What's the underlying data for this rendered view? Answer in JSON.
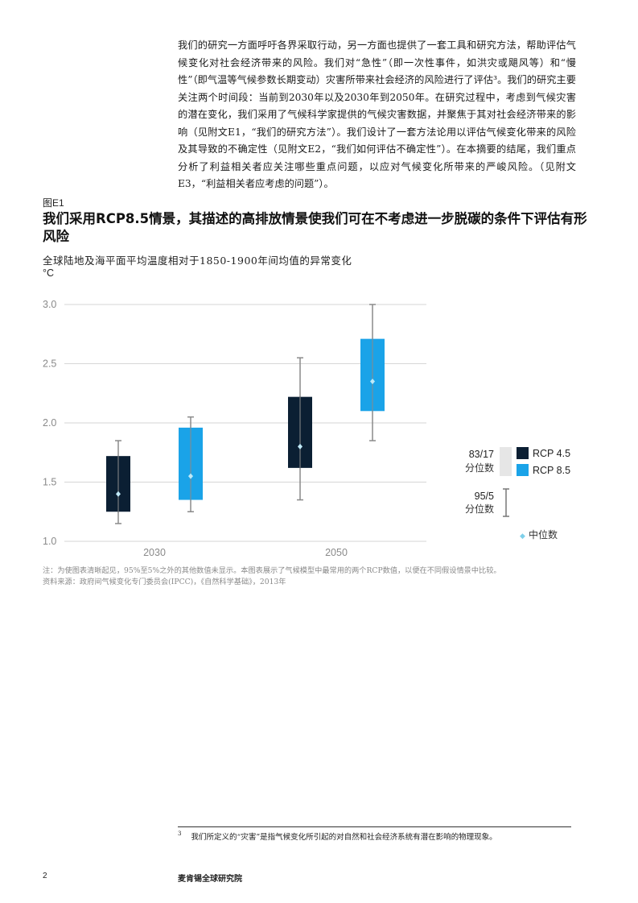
{
  "intro_text": "我们的研究一方面呼吁各界采取行动，另一方面也提供了一套工具和研究方法，帮助评估气候变化对社会经济带来的风险。我们对“急性”（即一次性事件，如洪灾或飓风等）和“慢性”（即气温等气候参数长期变动）灾害所带来社会经济的风险进行了评估³。我们的研究主要关注两个时间段：当前到2030年以及2030年到2050年。在研究过程中，考虑到气候灾害的潜在变化，我们采用了气候科学家提供的气候灾害数据，并聚焦于其对社会经济带来的影响（见附文E1，“我们的研究方法”）。我们设计了一套方法论用以评估气候变化带来的风险及其导致的不确定性（见附文E2，“我们如何评估不确定性”）。在本摘要的结尾，我们重点分析了利益相关者应关注哪些重点问题，以应对气候变化所带来的严峻风险。（见附文E3，“利益相关者应考虑的问题”）。",
  "figure": {
    "label": "图E1",
    "title": "我们采用RCP8.5情景，其描述的高排放情景使我们可在不考虑进一步脱碳的条件下评估有形风险",
    "subtitle": "全球陆地及海平面平均温度相对于1850-1900年间均值的异常变化",
    "unit": "°C"
  },
  "chart_data": {
    "type": "box",
    "ylabel": "°C",
    "ylim": [
      1.0,
      3.0
    ],
    "yticks": [
      1.0,
      1.5,
      2.0,
      2.5,
      3.0
    ],
    "ytick_labels": [
      "1.0",
      "1.5",
      "2.0",
      "2.5",
      "3.0"
    ],
    "categories": [
      "2030",
      "2050"
    ],
    "series": [
      {
        "name": "RCP 4.5",
        "color": "#0b1f33",
        "boxes": [
          {
            "category": "2030",
            "q_low": 1.25,
            "q_high": 1.72,
            "whisker_low": 1.15,
            "whisker_high": 1.85,
            "median": 1.4
          },
          {
            "category": "2050",
            "q_low": 1.62,
            "q_high": 2.22,
            "whisker_low": 1.35,
            "whisker_high": 2.55,
            "median": 1.8
          }
        ]
      },
      {
        "name": "RCP 8.5",
        "color": "#1aa3e8",
        "boxes": [
          {
            "category": "2030",
            "q_low": 1.35,
            "q_high": 1.96,
            "whisker_low": 1.25,
            "whisker_high": 2.05,
            "median": 1.55
          },
          {
            "category": "2050",
            "q_low": 2.1,
            "q_high": 2.71,
            "whisker_low": 1.85,
            "whisker_high": 3.0,
            "median": 2.35
          }
        ]
      }
    ],
    "legend": {
      "box_label_line1": "83/17",
      "box_label_line2": "分位数",
      "whisker_label_line1": "95/5",
      "whisker_label_line2": "分位数",
      "median_label": "中位数",
      "median_marker": "◆"
    },
    "grid": true,
    "legend_position": "right"
  },
  "note": "注：为使图表清晰起见，95%至5%之外的其他数值未显示。本图表展示了气候模型中最常用的两个RCP数值，以便在不同假设情景中比较。",
  "source": "资料来源：政府间气候变化专门委员会(IPCC)，《自然科学基础》，2013年",
  "footnote": {
    "marker": "3",
    "text": "我们所定义的“灾害”是指气候变化所引起的对自然和社会经济系统有潜在影响的物理现象。"
  },
  "page_number": "2",
  "publisher": "麦肯锡全球研究院"
}
